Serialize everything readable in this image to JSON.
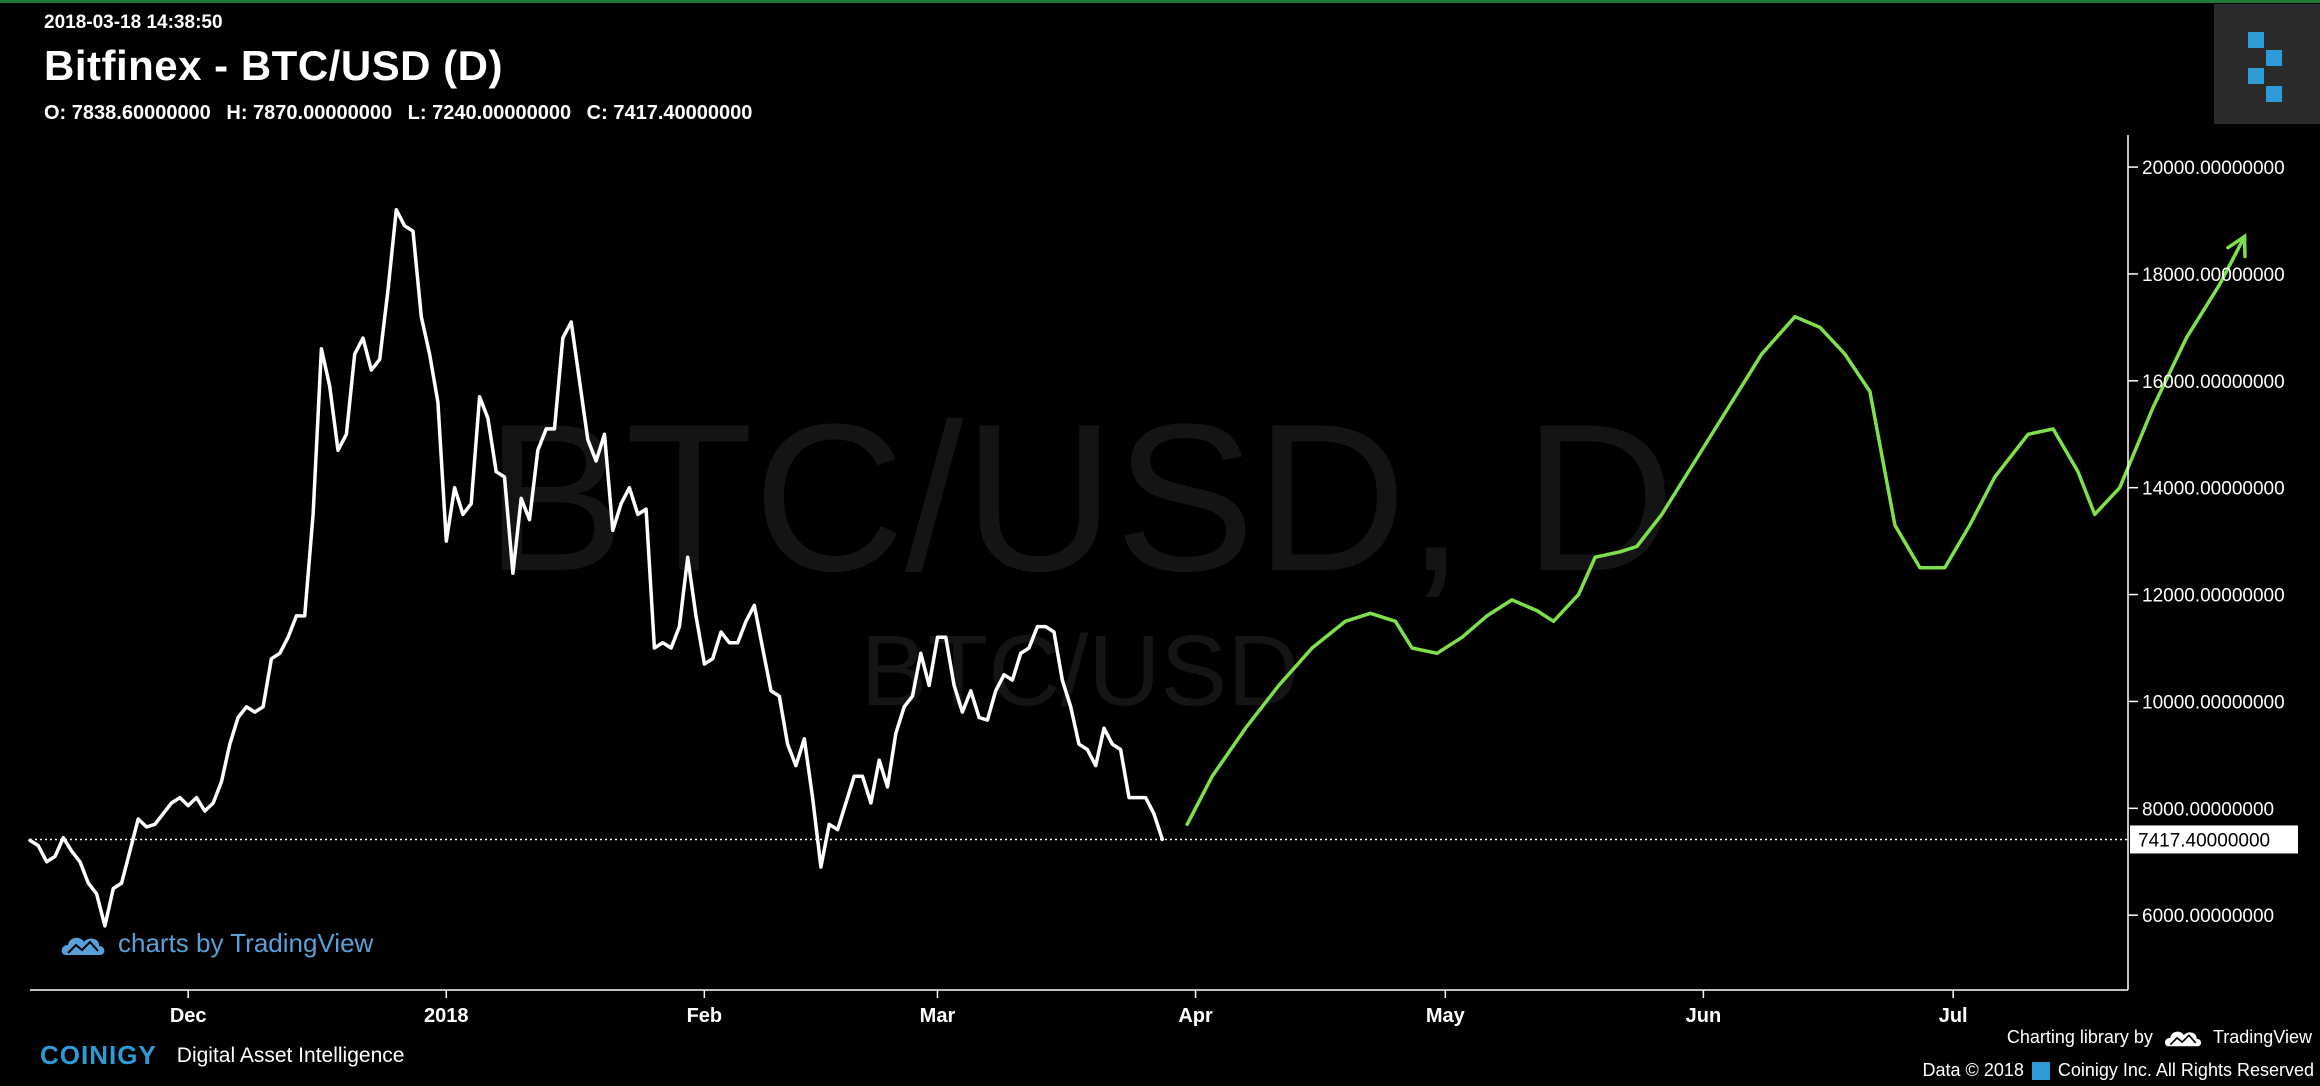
{
  "header": {
    "timestamp": "2018-03-18 14:38:50",
    "title": "Bitfinex - BTC/USD (D)",
    "ohlc": {
      "o": "O: 7838.60000000",
      "h": "H: 7870.00000000",
      "l": "L: 7240.00000000",
      "c": "C: 7417.40000000"
    }
  },
  "chart_data": {
    "type": "line",
    "watermark_main": "BTC/USD, D",
    "watermark_sub": "BTC/USD",
    "y_ticks": [
      "20000.00000000",
      "18000.00000000",
      "16000.00000000",
      "14000.00000000",
      "12000.00000000",
      "10000.00000000",
      "8000.00000000",
      "6000.00000000"
    ],
    "y_tick_values": [
      20000,
      18000,
      16000,
      14000,
      12000,
      10000,
      8000,
      6000
    ],
    "ylim": [
      4600,
      20600
    ],
    "last_price": 7417.4,
    "last_price_label": "7417.40000000",
    "x_ticks": [
      {
        "label": "Dec",
        "x": "2017-12-01"
      },
      {
        "label": "2018",
        "x": "2018-01-01"
      },
      {
        "label": "Feb",
        "x": "2018-02-01"
      },
      {
        "label": "Mar",
        "x": "2018-03-01"
      },
      {
        "label": "Apr",
        "x": "2018-04-01"
      },
      {
        "label": "May",
        "x": "2018-05-01"
      },
      {
        "label": "Jun",
        "x": "2018-06-01"
      },
      {
        "label": "Jul",
        "x": "2018-07-01"
      }
    ],
    "xlim": [
      "2017-11-12",
      "2018-07-22"
    ],
    "series": [
      {
        "color": "#ffffff",
        "points": [
          [
            "2017-11-12",
            7400
          ],
          [
            "2017-11-13",
            7300
          ],
          [
            "2017-11-14",
            7000
          ],
          [
            "2017-11-15",
            7100
          ],
          [
            "2017-11-16",
            7450
          ],
          [
            "2017-11-17",
            7200
          ],
          [
            "2017-11-18",
            7000
          ],
          [
            "2017-11-19",
            6600
          ],
          [
            "2017-11-20",
            6400
          ],
          [
            "2017-11-21",
            5800
          ],
          [
            "2017-11-22",
            6500
          ],
          [
            "2017-11-23",
            6600
          ],
          [
            "2017-11-24",
            7200
          ],
          [
            "2017-11-25",
            7800
          ],
          [
            "2017-11-26",
            7650
          ],
          [
            "2017-11-27",
            7700
          ],
          [
            "2017-11-28",
            7900
          ],
          [
            "2017-11-29",
            8100
          ],
          [
            "2017-11-30",
            8200
          ],
          [
            "2017-12-01",
            8050
          ],
          [
            "2017-12-02",
            8200
          ],
          [
            "2017-12-03",
            7950
          ],
          [
            "2017-12-04",
            8100
          ],
          [
            "2017-12-05",
            8500
          ],
          [
            "2017-12-06",
            9200
          ],
          [
            "2017-12-07",
            9700
          ],
          [
            "2017-12-08",
            9900
          ],
          [
            "2017-12-09",
            9800
          ],
          [
            "2017-12-10",
            9900
          ],
          [
            "2017-12-11",
            10800
          ],
          [
            "2017-12-12",
            10900
          ],
          [
            "2017-12-13",
            11200
          ],
          [
            "2017-12-14",
            11600
          ],
          [
            "2017-12-15",
            11600
          ],
          [
            "2017-12-16",
            13500
          ],
          [
            "2017-12-17",
            16600
          ],
          [
            "2017-12-18",
            15900
          ],
          [
            "2017-12-19",
            14700
          ],
          [
            "2017-12-20",
            15000
          ],
          [
            "2017-12-21",
            16500
          ],
          [
            "2017-12-22",
            16800
          ],
          [
            "2017-12-23",
            16200
          ],
          [
            "2017-12-24",
            16400
          ],
          [
            "2017-12-25",
            17700
          ],
          [
            "2017-12-26",
            19200
          ],
          [
            "2017-12-27",
            18900
          ],
          [
            "2017-12-28",
            18800
          ],
          [
            "2017-12-29",
            17200
          ],
          [
            "2017-12-30",
            16500
          ],
          [
            "2017-12-31",
            15600
          ],
          [
            "2018-01-01",
            13000
          ],
          [
            "2018-01-02",
            14000
          ],
          [
            "2018-01-03",
            13500
          ],
          [
            "2018-01-04",
            13700
          ],
          [
            "2018-01-05",
            15700
          ],
          [
            "2018-01-06",
            15300
          ],
          [
            "2018-01-07",
            14300
          ],
          [
            "2018-01-08",
            14200
          ],
          [
            "2018-01-09",
            12400
          ],
          [
            "2018-01-10",
            13800
          ],
          [
            "2018-01-11",
            13400
          ],
          [
            "2018-01-12",
            14700
          ],
          [
            "2018-01-13",
            15100
          ],
          [
            "2018-01-14",
            15100
          ],
          [
            "2018-01-15",
            16800
          ],
          [
            "2018-01-16",
            17100
          ],
          [
            "2018-01-17",
            16000
          ],
          [
            "2018-01-18",
            14900
          ],
          [
            "2018-01-19",
            14500
          ],
          [
            "2018-01-20",
            15000
          ],
          [
            "2018-01-21",
            13200
          ],
          [
            "2018-01-22",
            13700
          ],
          [
            "2018-01-23",
            14000
          ],
          [
            "2018-01-24",
            13500
          ],
          [
            "2018-01-25",
            13600
          ],
          [
            "2018-01-26",
            11000
          ],
          [
            "2018-01-27",
            11100
          ],
          [
            "2018-01-28",
            11000
          ],
          [
            "2018-01-29",
            11400
          ],
          [
            "2018-01-30",
            12700
          ],
          [
            "2018-01-31",
            11600
          ],
          [
            "2018-02-01",
            10700
          ],
          [
            "2018-02-02",
            10800
          ],
          [
            "2018-02-03",
            11300
          ],
          [
            "2018-02-04",
            11100
          ],
          [
            "2018-02-05",
            11100
          ],
          [
            "2018-02-06",
            11500
          ],
          [
            "2018-02-07",
            11800
          ],
          [
            "2018-02-08",
            11000
          ],
          [
            "2018-02-09",
            10200
          ],
          [
            "2018-02-10",
            10100
          ],
          [
            "2018-02-11",
            9200
          ],
          [
            "2018-02-12",
            8800
          ],
          [
            "2018-02-13",
            9300
          ],
          [
            "2018-02-14",
            8200
          ],
          [
            "2018-02-15",
            6900
          ],
          [
            "2018-02-16",
            7700
          ],
          [
            "2018-02-17",
            7600
          ],
          [
            "2018-02-18",
            8100
          ],
          [
            "2018-02-19",
            8600
          ],
          [
            "2018-02-20",
            8600
          ],
          [
            "2018-02-21",
            8100
          ],
          [
            "2018-02-22",
            8900
          ],
          [
            "2018-02-23",
            8400
          ],
          [
            "2018-02-24",
            9400
          ],
          [
            "2018-02-25",
            9900
          ],
          [
            "2018-02-26",
            10100
          ],
          [
            "2018-02-27",
            10900
          ],
          [
            "2018-02-28",
            10300
          ],
          [
            "2018-03-01",
            11200
          ],
          [
            "2018-03-02",
            11200
          ],
          [
            "2018-03-03",
            10300
          ],
          [
            "2018-03-04",
            9800
          ],
          [
            "2018-03-05",
            10200
          ],
          [
            "2018-03-06",
            9700
          ],
          [
            "2018-03-07",
            9650
          ],
          [
            "2018-03-08",
            10200
          ],
          [
            "2018-03-09",
            10500
          ],
          [
            "2018-03-10",
            10400
          ],
          [
            "2018-03-11",
            10900
          ],
          [
            "2018-03-12",
            11000
          ],
          [
            "2018-03-13",
            11400
          ],
          [
            "2018-03-14",
            11400
          ],
          [
            "2018-03-15",
            11300
          ],
          [
            "2018-03-16",
            10400
          ],
          [
            "2018-03-17",
            9900
          ],
          [
            "2018-03-18",
            9200
          ],
          [
            "2018-03-19",
            9100
          ],
          [
            "2018-03-20",
            8800
          ],
          [
            "2018-03-21",
            9500
          ],
          [
            "2018-03-22",
            9200
          ],
          [
            "2018-03-23",
            9100
          ],
          [
            "2018-03-24",
            8200
          ],
          [
            "2018-03-25",
            8200
          ],
          [
            "2018-03-26",
            8200
          ],
          [
            "2018-03-27",
            7900
          ],
          [
            "2018-03-28",
            7420
          ]
        ]
      },
      {
        "color": "#7ee04a",
        "points": [
          [
            "2018-03-31",
            7700
          ],
          [
            "2018-04-03",
            8600
          ],
          [
            "2018-04-07",
            9500
          ],
          [
            "2018-04-11",
            10300
          ],
          [
            "2018-04-15",
            11000
          ],
          [
            "2018-04-19",
            11500
          ],
          [
            "2018-04-22",
            11650
          ],
          [
            "2018-04-25",
            11500
          ],
          [
            "2018-04-27",
            11000
          ],
          [
            "2018-04-30",
            10900
          ],
          [
            "2018-05-03",
            11200
          ],
          [
            "2018-05-06",
            11600
          ],
          [
            "2018-05-09",
            11900
          ],
          [
            "2018-05-12",
            11700
          ],
          [
            "2018-05-14",
            11500
          ],
          [
            "2018-05-17",
            12000
          ],
          [
            "2018-05-19",
            12700
          ],
          [
            "2018-05-22",
            12800
          ],
          [
            "2018-05-24",
            12900
          ],
          [
            "2018-05-27",
            13500
          ],
          [
            "2018-05-31",
            14500
          ],
          [
            "2018-06-04",
            15500
          ],
          [
            "2018-06-08",
            16500
          ],
          [
            "2018-06-12",
            17200
          ],
          [
            "2018-06-15",
            17000
          ],
          [
            "2018-06-18",
            16500
          ],
          [
            "2018-06-21",
            15800
          ],
          [
            "2018-06-24",
            13300
          ],
          [
            "2018-06-27",
            12500
          ],
          [
            "2018-06-30",
            12500
          ],
          [
            "2018-07-03",
            13300
          ],
          [
            "2018-07-06",
            14200
          ],
          [
            "2018-07-10",
            15000
          ],
          [
            "2018-07-13",
            15100
          ],
          [
            "2018-07-16",
            14300
          ],
          [
            "2018-07-18",
            13500
          ],
          [
            "2018-07-21",
            14000
          ],
          [
            "2018-07-25",
            15500
          ],
          [
            "2018-07-29",
            16800
          ],
          [
            "2018-08-02",
            17800
          ],
          [
            "2018-08-05",
            18700
          ]
        ]
      }
    ]
  },
  "credits": {
    "tv_watermark": "charts by TradingView",
    "coinigy_name": "COINIGY",
    "coinigy_tag": "Digital Asset Intelligence",
    "charting_library": "Charting library by",
    "tradingview": "TradingView",
    "data_credit": "Data © 2018",
    "coinigy_rights": "Coinigy Inc. All Rights Reserved"
  }
}
